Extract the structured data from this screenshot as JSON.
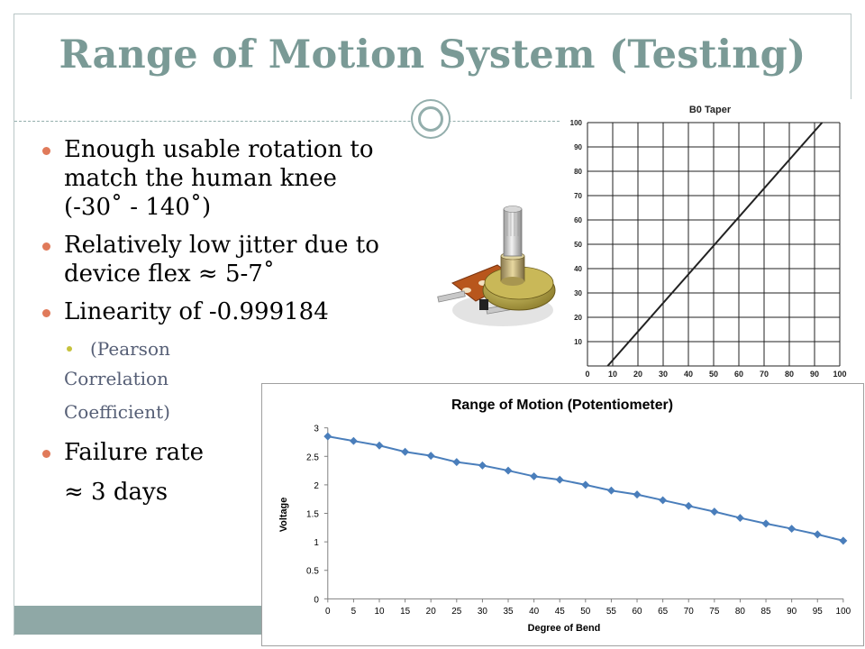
{
  "slide": {
    "title": "Range of Motion System (Testing)",
    "bullets": [
      {
        "lines": [
          "Enough usable rotation to",
          "match the human knee",
          "(-30˚ - 140˚)"
        ]
      },
      {
        "lines": [
          "Relatively low jitter due to",
          "device flex ≈ 5-7˚"
        ]
      },
      {
        "lines": [
          "Linearity of -0.999184"
        ]
      },
      {
        "lines": [
          "Failure rate",
          "≈ 3 days"
        ]
      }
    ],
    "sub_bullet": {
      "lines": [
        "(Pearson",
        "Correlation",
        "Coefficient)"
      ]
    }
  },
  "images": {
    "potentiometer": "potentiometer-photo"
  },
  "colors": {
    "title": "#7a9a96",
    "bullet": "#e07a5a",
    "sub_bullet": "#c6c23c",
    "series": "#4a7ebb",
    "accent_bar": "#8fa8a6"
  },
  "chart_data": [
    {
      "type": "line",
      "title": "B0 Taper",
      "xlabel": "",
      "ylabel": "",
      "x_ticks": [
        0,
        10,
        20,
        30,
        40,
        50,
        60,
        70,
        80,
        90,
        100
      ],
      "y_ticks": [
        0,
        10,
        20,
        30,
        40,
        50,
        60,
        70,
        80,
        90,
        100
      ],
      "xlim": [
        0,
        100
      ],
      "ylim": [
        0,
        100
      ],
      "grid": true,
      "series": [
        {
          "x": [
            8,
            93
          ],
          "y": [
            0,
            100
          ]
        }
      ]
    },
    {
      "type": "line",
      "title": "Range of Motion (Potentiometer)",
      "xlabel": "Degree of Bend",
      "ylabel": "Voltage",
      "ylim": [
        0,
        3
      ],
      "y_ticks": [
        "0",
        "0.5",
        "1",
        "1.5",
        "2",
        "2.5",
        "3"
      ],
      "grid": false,
      "x": [
        0,
        5,
        10,
        15,
        20,
        25,
        30,
        35,
        40,
        45,
        50,
        55,
        60,
        65,
        70,
        75,
        80,
        85,
        90,
        95,
        100
      ],
      "series": [
        {
          "values": [
            2.85,
            2.77,
            2.69,
            2.58,
            2.51,
            2.4,
            2.34,
            2.25,
            2.15,
            2.09,
            2.0,
            1.9,
            1.83,
            1.73,
            1.63,
            1.53,
            1.42,
            1.32,
            1.23,
            1.13,
            1.02
          ]
        }
      ]
    }
  ]
}
